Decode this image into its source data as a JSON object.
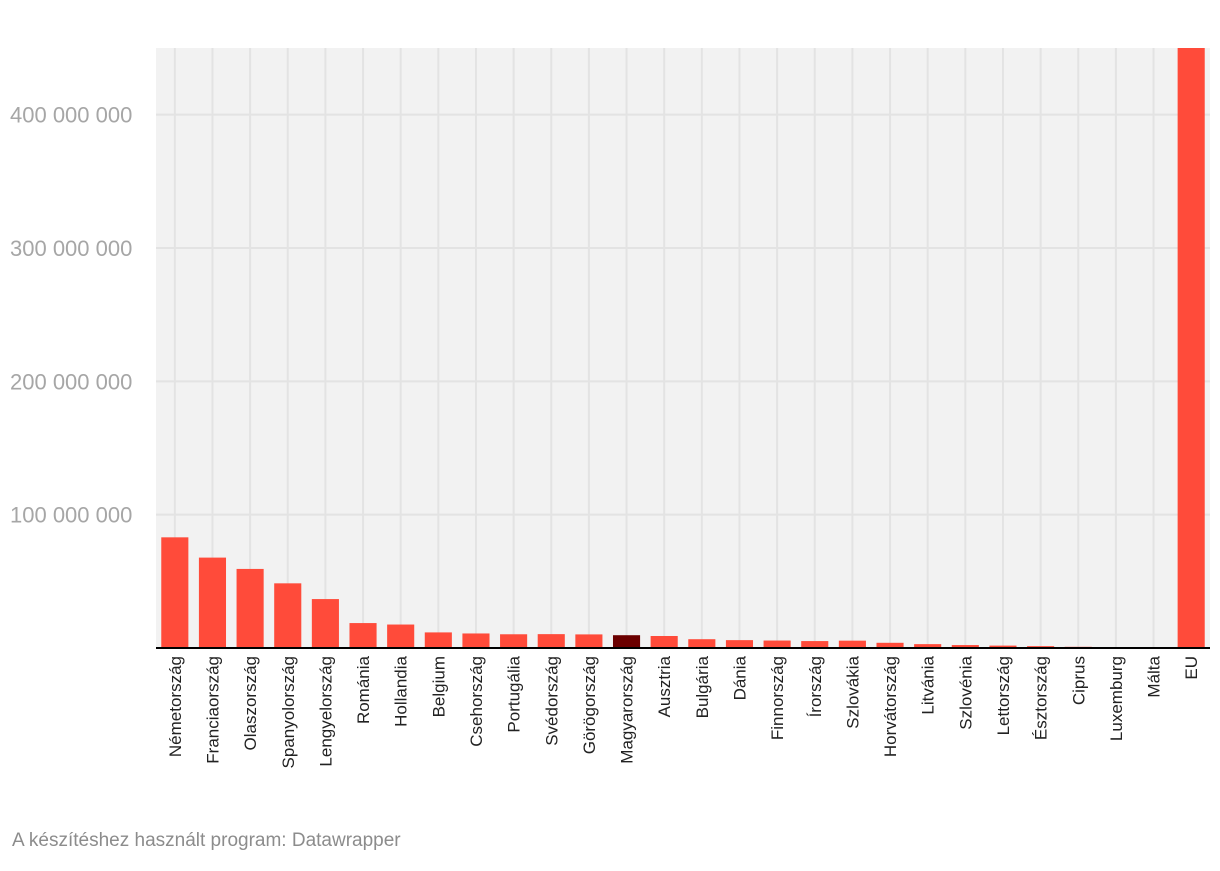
{
  "chart_data": {
    "type": "bar",
    "title": "",
    "xlabel": "",
    "ylabel": "",
    "ylim": [
      0,
      450000000
    ],
    "yticks": [
      100000000,
      200000000,
      300000000,
      400000000
    ],
    "ytick_labels": [
      "100 000 000",
      "200 000 000",
      "300 000 000",
      "400 000 000"
    ],
    "grid": true,
    "categories": [
      "Németország",
      "Franciaország",
      "Olaszország",
      "Spanyolország",
      "Lengyelország",
      "Románia",
      "Hollandia",
      "Belgium",
      "Csehország",
      "Portugália",
      "Svédország",
      "Görögország",
      "Magyarország",
      "Ausztria",
      "Bulgária",
      "Dánia",
      "Finnország",
      "Írország",
      "Szlovákia",
      "Horvátország",
      "Litvánia",
      "Szlovénia",
      "Lettország",
      "Észtország",
      "Ciprus",
      "Luxemburg",
      "Málta",
      "EU"
    ],
    "values": [
      83000000,
      67800000,
      59300000,
      48500000,
      36700000,
      18700000,
      17600000,
      11700000,
      10900000,
      10300000,
      10400000,
      10200000,
      9600000,
      9000000,
      6600000,
      5900000,
      5600000,
      5200000,
      5500000,
      3900000,
      2900000,
      2200000,
      1800000,
      1400000,
      900000,
      700000,
      600000,
      450000000
    ],
    "colors": {
      "default": "#ff4b3a",
      "highlight": "#6b0000",
      "highlight_category": "Magyarország",
      "plot_background": "#f2f2f2",
      "grid": "#e3e3e3",
      "tick_label": "#a6a6a6",
      "axis": "#000000"
    }
  },
  "footer": {
    "credit": "A készítéshez használt program: Datawrapper"
  }
}
